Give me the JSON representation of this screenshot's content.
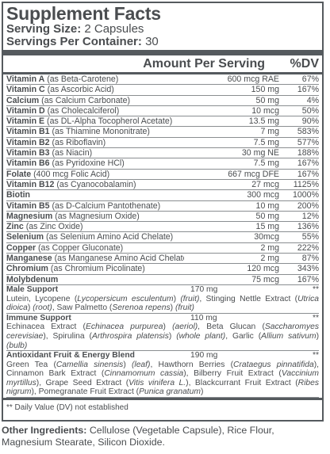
{
  "title": "Supplement Facts",
  "serving_size_label": "Serving Size:",
  "serving_size_value": "2 Capsules",
  "servings_label": "Servings Per Container:",
  "servings_value": "30",
  "header": {
    "amount": "Amount Per Serving",
    "dv": "%DV"
  },
  "nutrients": [
    {
      "name": "Vitamin A",
      "detail": " (as Beta-Carotene)",
      "amount": "600 mcg RAE",
      "dv": "67%"
    },
    {
      "name": "Vitamin C",
      "detail": " (as Ascorbic Acid)",
      "amount": "150 mg",
      "dv": "167%"
    },
    {
      "name": "Calcium",
      "detail": " (as Calcium Carbonate)",
      "amount": "50 mg",
      "dv": "4%"
    },
    {
      "name": "Vitamin D",
      "detail": " (as Cholecalciferol)",
      "amount": "10 mcg",
      "dv": "50%"
    },
    {
      "name": "Vitamin E",
      "detail": " (as DL-Alpha Tocopherol Acetate)",
      "amount": "13.5 mg",
      "dv": "90%"
    },
    {
      "name": "Vitamin B1",
      "detail": " (as Thiamine Mononitrate)",
      "amount": "7 mg",
      "dv": "583%"
    },
    {
      "name": "Vitamin B2",
      "detail": " (as Riboflavin)",
      "amount": "7.5 mg",
      "dv": "577%"
    },
    {
      "name": "Vitamin B3",
      "detail": " (as Niacin)",
      "amount": "30 mg NE",
      "dv": "188%"
    },
    {
      "name": "Vitamin B6",
      "detail": " (as Pyridoxine HCl)",
      "amount": "7.5 mg",
      "dv": "167%"
    },
    {
      "name": "Folate",
      "detail": " (400 mcg Folic Acid)",
      "amount": "667 mcg DFE",
      "dv": "167%"
    },
    {
      "name": "Vitamin B12",
      "detail": " (as Cyanocobalamin)",
      "amount": "27 mcg",
      "dv": "1125%"
    },
    {
      "name": "Biotin",
      "detail": "",
      "amount": "300 mcg",
      "dv": "1000%"
    },
    {
      "name": "Vitamin B5",
      "detail": " (as D-Calcium Pantothenate)",
      "amount": "10 mg",
      "dv": "200%"
    },
    {
      "name": "Magnesium",
      "detail": " (as Magnesium Oxide)",
      "amount": "50 mg",
      "dv": "12%"
    },
    {
      "name": "Zinc",
      "detail": " (as Zinc Oxide)",
      "amount": "15 mg",
      "dv": "136%"
    },
    {
      "name": "Selenium",
      "detail": " (as Selenium Amino Acid Chelate)",
      "amount": "30mcg",
      "dv": "55%"
    },
    {
      "name": "Copper",
      "detail": " (as Copper Gluconate)",
      "amount": "2 mg",
      "dv": "222%"
    },
    {
      "name": "Manganese",
      "detail": " (as Manganese Amino Acid Chelate)",
      "amount": "2 mg",
      "dv": "87%"
    },
    {
      "name": "Chromium",
      "detail": " (as Chromium Picolinate)",
      "amount": "120 mcg",
      "dv": "343%"
    },
    {
      "name": "Molybdenum",
      "detail": "",
      "amount": "75 mcg",
      "dv": "167%"
    }
  ],
  "blends": [
    {
      "name": "Male Support",
      "amount": "170 mg",
      "dv": "**",
      "desc_html": "Lutein, Lycopene (<i>Lycopersicum esculentum</i>) <i>(fruit)</i>, Stinging Nettle Extract (<i>Utrica dioica</i>) <i>(root)</i>, Saw Palmetto (<i>Serenoa repens</i>) <i>(fruit)</i>"
    },
    {
      "name": "Immune Support",
      "amount": "110 mg",
      "dv": "**",
      "desc_html": "Echinacea Extract (<i>Echinacea purpurea</i>) <i>(aeriol)</i>, Beta Glucan (<i>Saccharomyes cerevisiae</i>), Spirulina (<i>Arthrospira platensis</i>) <i>(whole plant)</i>, Garlic (<i>Allium sativum</i>) <i>(bulb)</i>"
    },
    {
      "name": "Antioxidant Fruit & Energy Blend",
      "amount": "190 mg",
      "dv": "**",
      "desc_html": "Green Tea (<i>Camellia sinensis</i>) <i>(leaf)</i>, Hawthorn Berries (<i>Crataegus pinnatifida</i>), Cinnamon Bark Extract (<i>Cinnamomum cassia</i>), Bilberry Fruit Extract (<i>Vaccinium myrtillus</i>), Grape Seed Extract (<i>Vitis vinifera L.</i>), Blackcurrant Fruit Extract (<i>Ribes nigrum</i>), Pomegranate Fruit Extract (<i>Punica granatum</i>)"
    }
  ],
  "footnote": "** Daily Value (DV) not established",
  "other_label": "Other Ingredients:",
  "other_value": " Cellulose (Vegetable Capsule), Rice Flour, Magnesium Stearate, Silicon Dioxide."
}
